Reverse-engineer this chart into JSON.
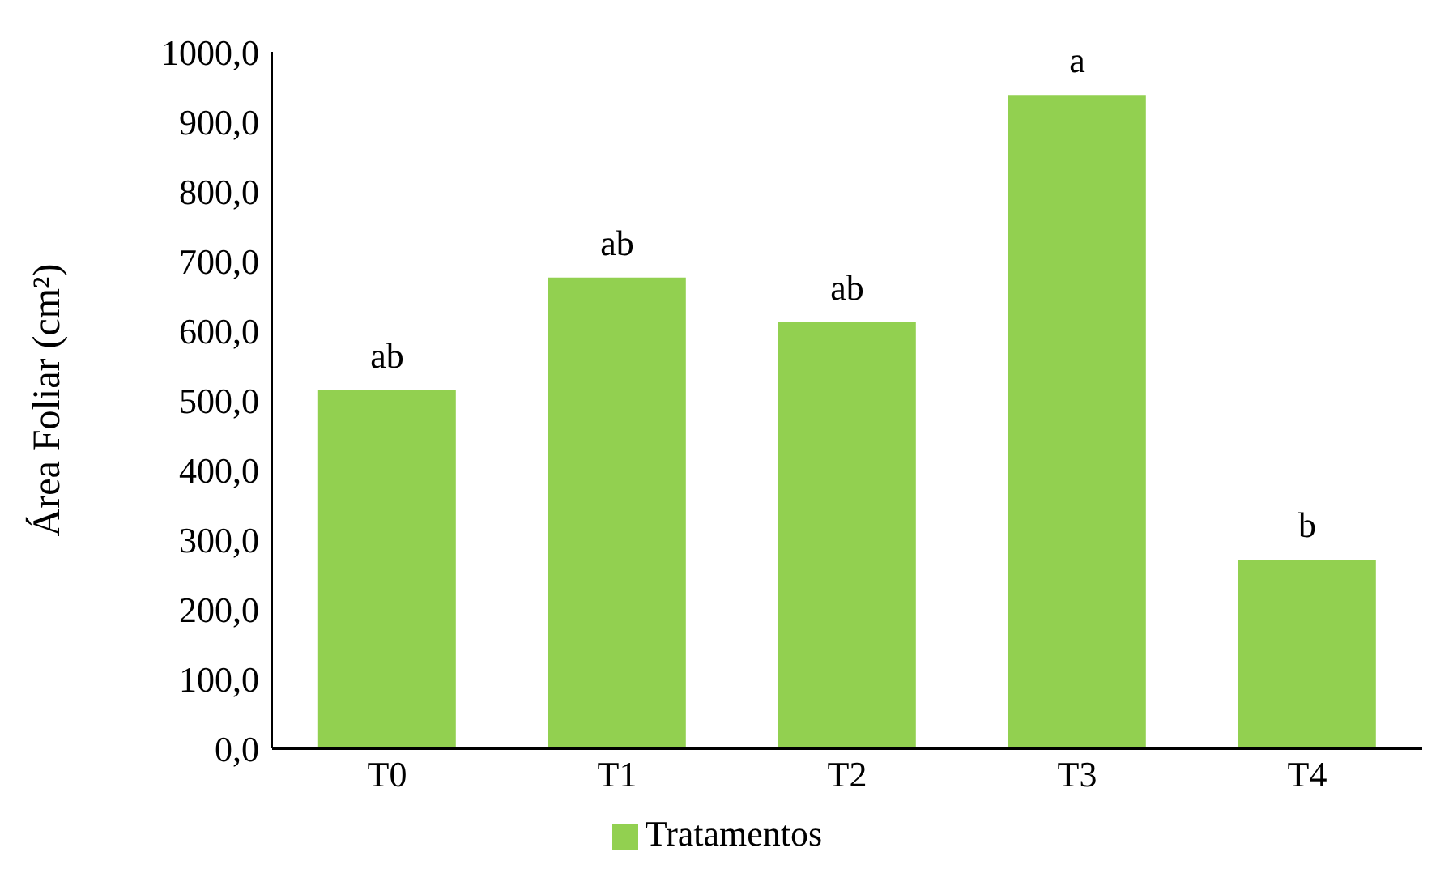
{
  "chart_data": {
    "type": "bar",
    "ylabel": "Área Foliar (cm²)",
    "categories": [
      "T0",
      "T1",
      "T2",
      "T3",
      "T4"
    ],
    "series": [
      {
        "name": "Tratamentos",
        "color": "#92d050",
        "values": [
          514,
          676,
          612,
          938,
          271
        ]
      }
    ],
    "ylim": [
      0,
      1000
    ],
    "yticks": [
      {
        "value": 0,
        "label": "0,0"
      },
      {
        "value": 100,
        "label": "100,0"
      },
      {
        "value": 200,
        "label": "200,0"
      },
      {
        "value": 300,
        "label": "300,0"
      },
      {
        "value": 400,
        "label": "400,0"
      },
      {
        "value": 500,
        "label": "500,0"
      },
      {
        "value": 600,
        "label": "600,0"
      },
      {
        "value": 700,
        "label": "700,0"
      },
      {
        "value": 800,
        "label": "800,0"
      },
      {
        "value": 900,
        "label": "900,0"
      },
      {
        "value": 1000,
        "label": "1000,0"
      }
    ],
    "annotations": [
      {
        "text": "ab",
        "x": "T0",
        "y": 514
      },
      {
        "text": "ab",
        "x": "T1",
        "y": 676
      },
      {
        "text": "ab",
        "x": "T2",
        "y": 612
      },
      {
        "text": "a",
        "x": "T3",
        "y": 938
      },
      {
        "text": "b",
        "x": "T4",
        "y": 271
      }
    ],
    "grid": false,
    "legend": "bottom"
  }
}
